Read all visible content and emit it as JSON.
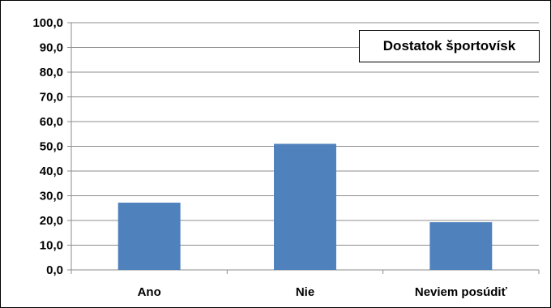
{
  "chart_data": {
    "type": "bar",
    "categories": [
      "Ano",
      "Nie",
      "Neviem posúdiť"
    ],
    "series": [
      {
        "name": "Dostatok športovísk",
        "values": [
          27.2,
          51.0,
          19.3
        ],
        "color": "#4f81bd"
      }
    ],
    "ylim": [
      0,
      100
    ],
    "yticks": [
      "0,0",
      "10,0",
      "20,0",
      "30,0",
      "40,0",
      "50,0",
      "60,0",
      "70,0",
      "80,0",
      "90,0",
      "100,0"
    ],
    "grid": true,
    "legend_position": "top-right",
    "title": "",
    "xlabel": "",
    "ylabel": ""
  }
}
